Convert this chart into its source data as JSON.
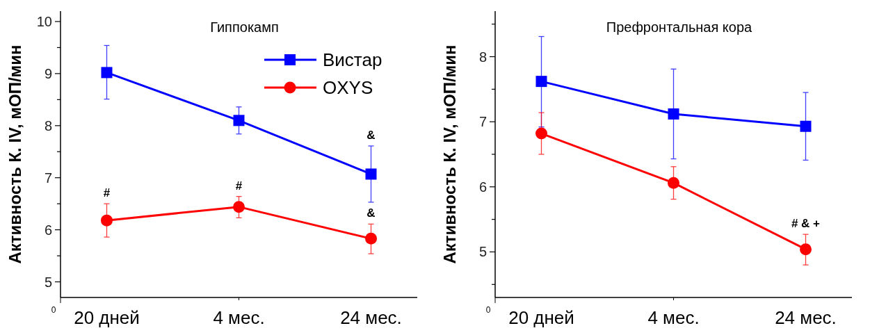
{
  "chart_data": [
    {
      "type": "line",
      "title": "Гиппокамп",
      "ylabel": "Активность К. IV, мОП/мин",
      "categories": [
        "20 дней",
        "4 мес.",
        "24 мес."
      ],
      "ylim": [
        4.7,
        10.2
      ],
      "yticks": [
        5,
        {
          "value": 5.5,
          "label": null
        },
        6,
        {
          "value": 6.5,
          "label": null
        },
        7,
        {
          "value": 7.5,
          "label": null
        },
        8,
        {
          "value": 8.5,
          "label": null
        },
        9,
        {
          "value": 9.5,
          "label": null
        },
        10
      ],
      "legend": "top right",
      "annotations": [
        "0",
        {
          "text": "#",
          "x": "20 дней",
          "y": 6.5
        },
        {
          "text": "#",
          "x": "4 мес.",
          "y": 6.64
        },
        {
          "text": "&",
          "x": "24 мес.",
          "y": 7.61
        },
        {
          "text": "&",
          "x": "24 мес.",
          "y": 6.11
        }
      ],
      "series": [
        {
          "name": "Вистар",
          "color": "#0000ff",
          "marker": "square",
          "values": [
            9.02,
            8.1,
            7.07
          ],
          "errors": [
            [
              8.51,
              9.54
            ],
            [
              7.84,
              8.36
            ],
            [
              6.53,
              7.61
            ]
          ]
        },
        {
          "name": "OXYS",
          "color": "#ff0000",
          "marker": "circle",
          "values": [
            6.18,
            6.44,
            5.83
          ],
          "errors": [
            [
              5.86,
              6.5
            ],
            [
              6.23,
              6.64
            ],
            [
              5.54,
              6.11
            ]
          ]
        }
      ]
    },
    {
      "type": "line",
      "title": "Префронтальная кора",
      "ylabel": "Активность К. IV, мОП/мин",
      "categories": [
        "20 дней",
        "4 мес.",
        "24 мес."
      ],
      "ylim": [
        4.3,
        8.7
      ],
      "yticks": [
        {
          "value": 4.5,
          "label": null
        },
        5,
        {
          "value": 5.5,
          "label": null
        },
        6,
        {
          "value": 6.5,
          "label": null
        },
        7,
        {
          "value": 7.5,
          "label": null
        },
        8,
        {
          "value": 8.5,
          "label": null
        }
      ],
      "legend": false,
      "annotations": [
        "0",
        {
          "text": "# & +",
          "x": "24 мес.",
          "y": 5.27
        }
      ],
      "series": [
        {
          "color": "#0000ff",
          "marker": "square",
          "values": [
            7.62,
            7.12,
            6.93
          ],
          "errors": [
            [
              6.92,
              8.31
            ],
            [
              6.43,
              7.81
            ],
            [
              6.41,
              7.45
            ]
          ]
        },
        {
          "color": "#ff0000",
          "marker": "circle",
          "values": [
            6.82,
            6.06,
            5.04
          ],
          "errors": [
            [
              6.5,
              7.14
            ],
            [
              5.81,
              6.31
            ],
            [
              4.8,
              5.27
            ]
          ]
        }
      ]
    }
  ]
}
